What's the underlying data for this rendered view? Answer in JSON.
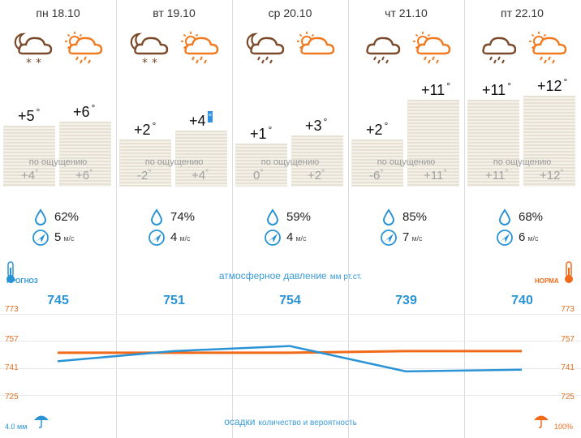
{
  "days": [
    {
      "label": "пн 18.10",
      "temp_night": "+5",
      "temp_day": "+6",
      "feel_night": "+4",
      "feel_day": "+6",
      "humidity": "62%",
      "wind": "5",
      "pressure": "745"
    },
    {
      "label": "вт 19.10",
      "temp_night": "+2",
      "temp_day": "+4",
      "feel_night": "-2",
      "feel_day": "+4",
      "humidity": "74%",
      "wind": "4",
      "pressure": "751"
    },
    {
      "label": "ср 20.10",
      "temp_night": "+1",
      "temp_day": "+3",
      "feel_night": "0",
      "feel_day": "+2",
      "humidity": "59%",
      "wind": "4",
      "pressure": "754"
    },
    {
      "label": "чт 21.10",
      "temp_night": "+2",
      "temp_day": "+11",
      "feel_night": "-6",
      "feel_day": "+11",
      "humidity": "85%",
      "wind": "7",
      "pressure": "739"
    },
    {
      "label": "пт 22.10",
      "temp_night": "+11",
      "temp_day": "+12",
      "feel_night": "+11",
      "feel_day": "+12",
      "humidity": "68%",
      "wind": "6",
      "pressure": "740"
    }
  ],
  "feel_label": "по ощущению",
  "degree": "°",
  "wind_unit": "м/с",
  "pressure_section": {
    "title": "атмосферное давление",
    "unit": "мм рт.ст."
  },
  "precip_section": {
    "title": "осадки",
    "subtitle": "количество и вероятность"
  },
  "legend_left": "ПРОГНОЗ",
  "legend_right": "НОРМА",
  "axis_ticks": [
    "773",
    "757",
    "741",
    "725"
  ],
  "precip_amount": "4.0 мм",
  "precip_prob": "100%",
  "colors": {
    "blue": "#2a93d5",
    "orange": "#f06a1a",
    "icon_brown": "#7a4a2a",
    "icon_orange": "#f07a20"
  },
  "chart_data": {
    "type": "line",
    "categories": [
      "пн 18.10",
      "вт 19.10",
      "ср 20.10",
      "чт 21.10",
      "пт 22.10"
    ],
    "series": [
      {
        "values": [
          745,
          751,
          754,
          739,
          740
        ]
      },
      {
        "values": [
          750,
          750,
          750,
          751,
          751
        ]
      }
    ],
    "ylim": [
      725,
      773
    ]
  }
}
